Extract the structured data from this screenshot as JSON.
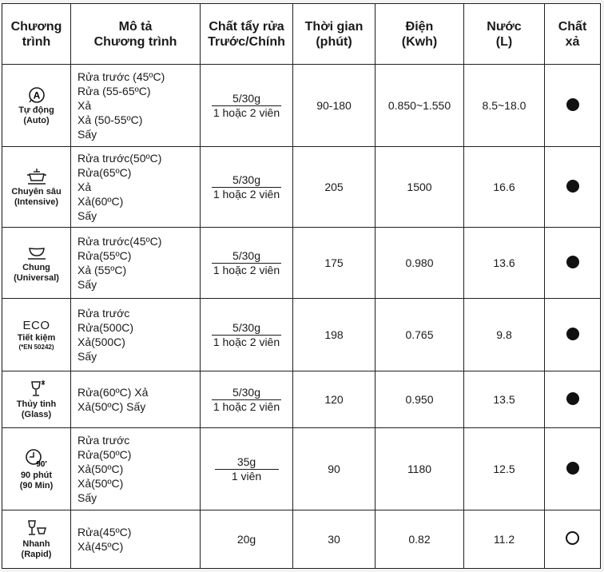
{
  "headers": {
    "program": [
      "Chương",
      "trình"
    ],
    "description": [
      "Mô tả",
      "Chương trình"
    ],
    "detergent": [
      "Chất tẩy rửa",
      "Trước/Chính"
    ],
    "time": [
      "Thời gian",
      "(phút)"
    ],
    "electricity": [
      "Điện",
      "(Kwh)"
    ],
    "water": [
      "Nước",
      "(L)"
    ],
    "rinse_aid": [
      "Chất",
      "xả"
    ]
  },
  "rows": [
    {
      "icon": "auto-a-icon",
      "icon_letter": "A",
      "name": "Tự động",
      "sub": "(Auto)",
      "steps": [
        "Rửa trước (45ºC)",
        "Rửa (55-65ºC)",
        "Xả",
        "Xả (50-55ºC)",
        "Sấy"
      ],
      "detergent_main": "5/30g",
      "detergent_alt": "1 hoặc 2 viên",
      "time": "90-180",
      "electricity": "0.850~1.550",
      "water": "8.5~18.0",
      "rinse_aid": "filled"
    },
    {
      "icon": "intensive-pot-icon",
      "name": "Chuyên sâu",
      "sub": "(Intensive)",
      "steps": [
        "Rửa trước(50ºC)",
        "Rửa(65ºC)",
        "Xả",
        "Xả(60ºC)",
        "Sấy"
      ],
      "detergent_main": "5/30g",
      "detergent_alt": "1 hoặc 2 viên",
      "time": "205",
      "electricity": "1500",
      "water": "16.6",
      "rinse_aid": "filled"
    },
    {
      "icon": "universal-bowl-icon",
      "name": "Chung",
      "sub": "(Universal)",
      "steps": [
        "Rửa trước(45ºC)",
        "Rửa(55ºC)",
        "Xả (55ºC)",
        "Sấy"
      ],
      "detergent_main": "5/30g",
      "detergent_alt": "1 hoặc 2 viên",
      "time": "175",
      "electricity": "0.980",
      "water": "13.6",
      "rinse_aid": "filled"
    },
    {
      "icon": "eco-icon",
      "icon_label": "ECO",
      "name": "Tiết kiệm",
      "sub": "(*EN 50242)",
      "steps": [
        "Rửa trước",
        "Rửa(500C)",
        "Xả(500C)",
        "Sấy"
      ],
      "detergent_main": "5/30g",
      "detergent_alt": "1 hoặc 2 viên",
      "time": "198",
      "electricity": "0.765",
      "water": "9.8",
      "rinse_aid": "filled"
    },
    {
      "icon": "glass-icon",
      "name": "Thủy tinh",
      "sub": "(Glass)",
      "steps": [
        "Rửa(60ºC) Xả",
        "Xả(50ºC) Sấy"
      ],
      "detergent_main": "5/30g",
      "detergent_alt": "1 hoặc 2 viên",
      "time": "120",
      "electricity": "0.950",
      "water": "13.5",
      "rinse_aid": "filled"
    },
    {
      "icon": "clock-90-icon",
      "icon_label": "90'",
      "name": "90 phút",
      "sub": "(90 Min)",
      "steps": [
        "Rửa trước",
        "Rửa(50ºC)",
        "Xả(50ºC)",
        "Xả(50ºC)",
        "Sấy"
      ],
      "detergent_main": "35g",
      "detergent_alt": "1 viên",
      "time": "90",
      "electricity": "1180",
      "water": "12.5",
      "rinse_aid": "filled"
    },
    {
      "icon": "rapid-glass-icon",
      "name": "Nhanh",
      "sub": "(Rapid)",
      "steps": [
        "Rửa(45ºC)",
        "Xả(45ºC)"
      ],
      "detergent_single": "20g",
      "time": "30",
      "electricity": "0.82",
      "water": "11.2",
      "rinse_aid": "open"
    }
  ]
}
